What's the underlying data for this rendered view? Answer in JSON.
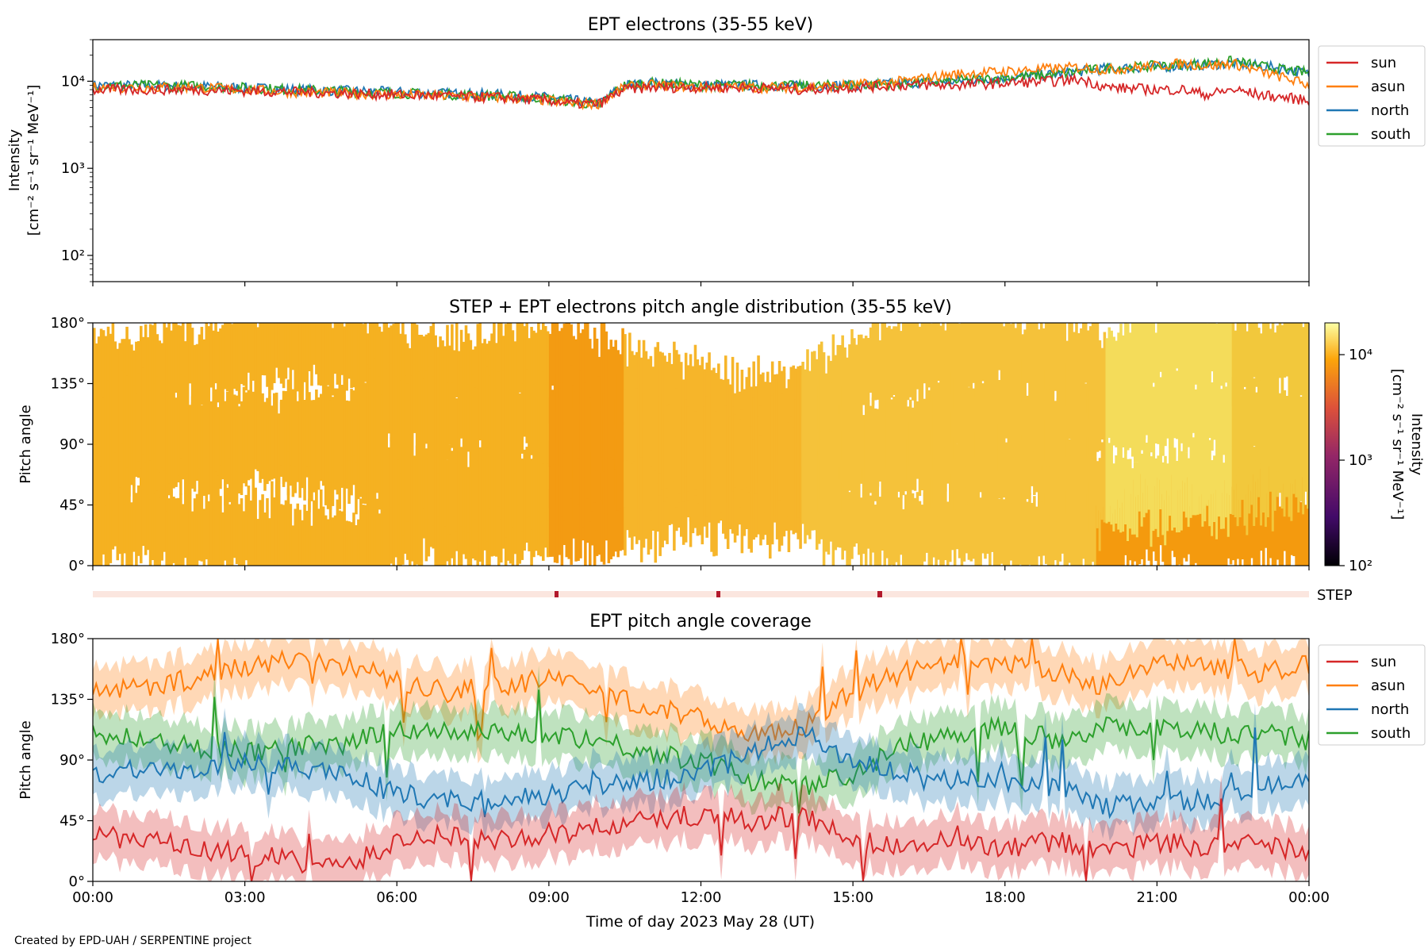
{
  "footer": {
    "credit": "Created by EPD-UAH / SERPENTINE project"
  },
  "colors": {
    "sun": "#d62728",
    "asun": "#ff7f0e",
    "north": "#1f77b4",
    "south": "#2ca02c",
    "step_bar": "#fbe6df",
    "step_mark": "#b2182b"
  },
  "xaxis": {
    "label": "Time of day 2023 May 28 (UT)",
    "ticks": [
      "00:00",
      "03:00",
      "06:00",
      "09:00",
      "12:00",
      "15:00",
      "18:00",
      "21:00",
      "00:00"
    ],
    "range_hours": [
      0,
      24
    ]
  },
  "chart_data": [
    {
      "type": "line",
      "title": "EPT electrons (35-55 keV)",
      "ylabel_line1": "Intensity",
      "ylabel_line2": "[cm⁻² s⁻¹ sr⁻¹ MeV⁻¹]",
      "yscale": "log",
      "ylim": [
        50,
        30000
      ],
      "yticks": [
        "10⁴",
        "10³",
        "10²"
      ],
      "ytick_values": [
        10000,
        1000,
        100
      ],
      "legend_placement": "outside-right",
      "x_hours": [
        0,
        2,
        4,
        6,
        8,
        9,
        9.5,
        10,
        10.5,
        11,
        12,
        13,
        14,
        15,
        16,
        17,
        18,
        19,
        19.5,
        20,
        21,
        21.5,
        22,
        22.5,
        23,
        23.5,
        24
      ],
      "series": [
        {
          "name": "sun",
          "values": [
            8000,
            8000,
            7500,
            7000,
            6500,
            6000,
            5500,
            5500,
            8000,
            8500,
            8500,
            8500,
            8000,
            8500,
            9000,
            9000,
            9500,
            10000,
            10500,
            8500,
            8000,
            8000,
            7000,
            8000,
            7000,
            6500,
            6000
          ]
        },
        {
          "name": "asun",
          "values": [
            8500,
            8500,
            7500,
            7000,
            6500,
            6000,
            5500,
            5500,
            8500,
            9000,
            8500,
            8500,
            8500,
            9000,
            10000,
            12000,
            13000,
            14000,
            14500,
            13500,
            15000,
            16000,
            15000,
            16000,
            13000,
            11000,
            9000
          ]
        },
        {
          "name": "north",
          "values": [
            9000,
            8800,
            8000,
            7500,
            7000,
            6500,
            6000,
            5500,
            9000,
            9500,
            9000,
            9000,
            8800,
            9000,
            9500,
            10000,
            11000,
            12000,
            13000,
            14000,
            14500,
            15000,
            15500,
            16000,
            15000,
            14000,
            12000
          ]
        },
        {
          "name": "south",
          "values": [
            9000,
            8800,
            8000,
            7300,
            6800,
            6300,
            5800,
            5300,
            9000,
            9500,
            9000,
            9000,
            8800,
            9000,
            9500,
            10000,
            11000,
            12000,
            13000,
            14000,
            15000,
            15500,
            16000,
            17000,
            15000,
            13500,
            12500
          ]
        }
      ]
    },
    {
      "type": "heatmap",
      "title": "STEP + EPT electrons pitch angle distribution (35-55 keV)",
      "ylabel": "Pitch angle",
      "ylim": [
        0,
        180
      ],
      "yticks": [
        "0°",
        "45°",
        "90°",
        "135°",
        "180°"
      ],
      "colorbar": {
        "label_line1": "Intensity",
        "label_line2": "[cm⁻² s⁻¹ sr⁻¹ MeV⁻¹]",
        "ticks": [
          "10⁴",
          "10³",
          "10²"
        ],
        "range": [
          100,
          20000
        ],
        "scale": "log"
      }
    },
    {
      "type": "line",
      "title": "EPT pitch angle coverage",
      "ylabel": "Pitch angle",
      "ylim": [
        0,
        180
      ],
      "yticks": [
        "0°",
        "45°",
        "90°",
        "135°",
        "180°"
      ],
      "legend_placement": "outside-right",
      "step_strip_label": "STEP",
      "x_hours": [
        0,
        1,
        2,
        3,
        4,
        5,
        6,
        7,
        8,
        9,
        10,
        11,
        12,
        13,
        14,
        15,
        16,
        17,
        18,
        19,
        20,
        21,
        22,
        23,
        24
      ],
      "series": [
        {
          "name": "sun",
          "values": [
            35,
            30,
            25,
            20,
            15,
            10,
            30,
            35,
            30,
            35,
            40,
            45,
            50,
            45,
            50,
            30,
            25,
            30,
            25,
            30,
            20,
            30,
            25,
            30,
            20
          ]
        },
        {
          "name": "asun",
          "values": [
            140,
            145,
            150,
            160,
            165,
            160,
            150,
            140,
            145,
            150,
            140,
            130,
            120,
            110,
            115,
            140,
            155,
            160,
            160,
            155,
            145,
            160,
            160,
            155,
            160
          ]
        },
        {
          "name": "north",
          "values": [
            80,
            85,
            80,
            90,
            85,
            80,
            65,
            60,
            60,
            65,
            70,
            75,
            80,
            95,
            110,
            90,
            80,
            75,
            75,
            70,
            55,
            60,
            60,
            70,
            75
          ]
        },
        {
          "name": "south",
          "values": [
            110,
            105,
            100,
            95,
            100,
            100,
            115,
            110,
            110,
            110,
            105,
            95,
            90,
            75,
            70,
            80,
            100,
            110,
            115,
            105,
            115,
            115,
            110,
            110,
            105
          ]
        }
      ]
    }
  ]
}
